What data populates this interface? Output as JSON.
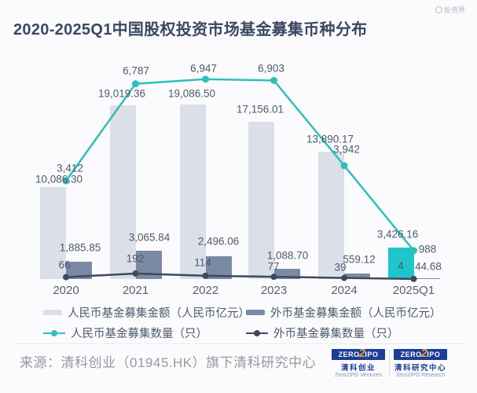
{
  "page": {
    "title": "2020-2025Q1中国股权投资市场基金募集币种分布",
    "watermark": "投资界"
  },
  "chart_data": {
    "type": "bar",
    "subtype": "combo-bar-line",
    "title": "2020-2025Q1中国股权投资市场基金募集币种分布",
    "categories": [
      "2020",
      "2021",
      "2022",
      "2023",
      "2024",
      "2025Q1"
    ],
    "series": [
      {
        "name": "人民币基金募集金额（人民币亿元）",
        "type": "bar",
        "values": [
          10086.3,
          19019.36,
          19086.5,
          17156.01,
          13890.17,
          3426.16
        ],
        "labels": [
          "10,086.30",
          "19,019.36",
          "19,086.50",
          "17,156.01",
          "13,890.17",
          "3,426.16"
        ],
        "color": "#dbdfe8",
        "highlight_index": 5,
        "highlight_color": "#20c4cb"
      },
      {
        "name": "外币基金募集金额（人民币亿元）",
        "type": "bar",
        "values": [
          1885.85,
          3065.84,
          2496.06,
          1088.7,
          559.12,
          44.68
        ],
        "labels": [
          "1,885.85",
          "3,065.84",
          "2,496.06",
          "1,088.70",
          "559.12",
          "44.68"
        ],
        "color": "#7b8aa3"
      },
      {
        "name": "人民币基金募集数量（只）",
        "type": "line",
        "values": [
          3412,
          6787,
          6947,
          6903,
          3942,
          988
        ],
        "labels": [
          "3,412",
          "6,787",
          "6,947",
          "6,903",
          "3,942",
          "988"
        ],
        "color": "#2ec0ba"
      },
      {
        "name": "外币基金募集数量（只）",
        "type": "line",
        "values": [
          66,
          192,
          114,
          77,
          39,
          4
        ],
        "labels": [
          "66",
          "192",
          "114",
          "77",
          "39",
          "4"
        ],
        "color": "#3d4a5d"
      }
    ],
    "ylim_bar": [
      0,
      20000
    ],
    "ylim_line": [
      0,
      7600
    ],
    "grid": false,
    "axes_visible": false,
    "legend_position": "bottom"
  },
  "footer": {
    "source": "来源：清科创业（01945.HK）旗下清科研究中心",
    "logos": [
      {
        "zero": "ZERO",
        "two": "2",
        "ipo": "IPO",
        "cn": "清科创业",
        "en": "Zero2IPO Ventures"
      },
      {
        "zero": "ZERO",
        "two": "2",
        "ipo": "IPO",
        "cn": "清科研究中心",
        "en": "Zero2IPO Research"
      }
    ]
  }
}
